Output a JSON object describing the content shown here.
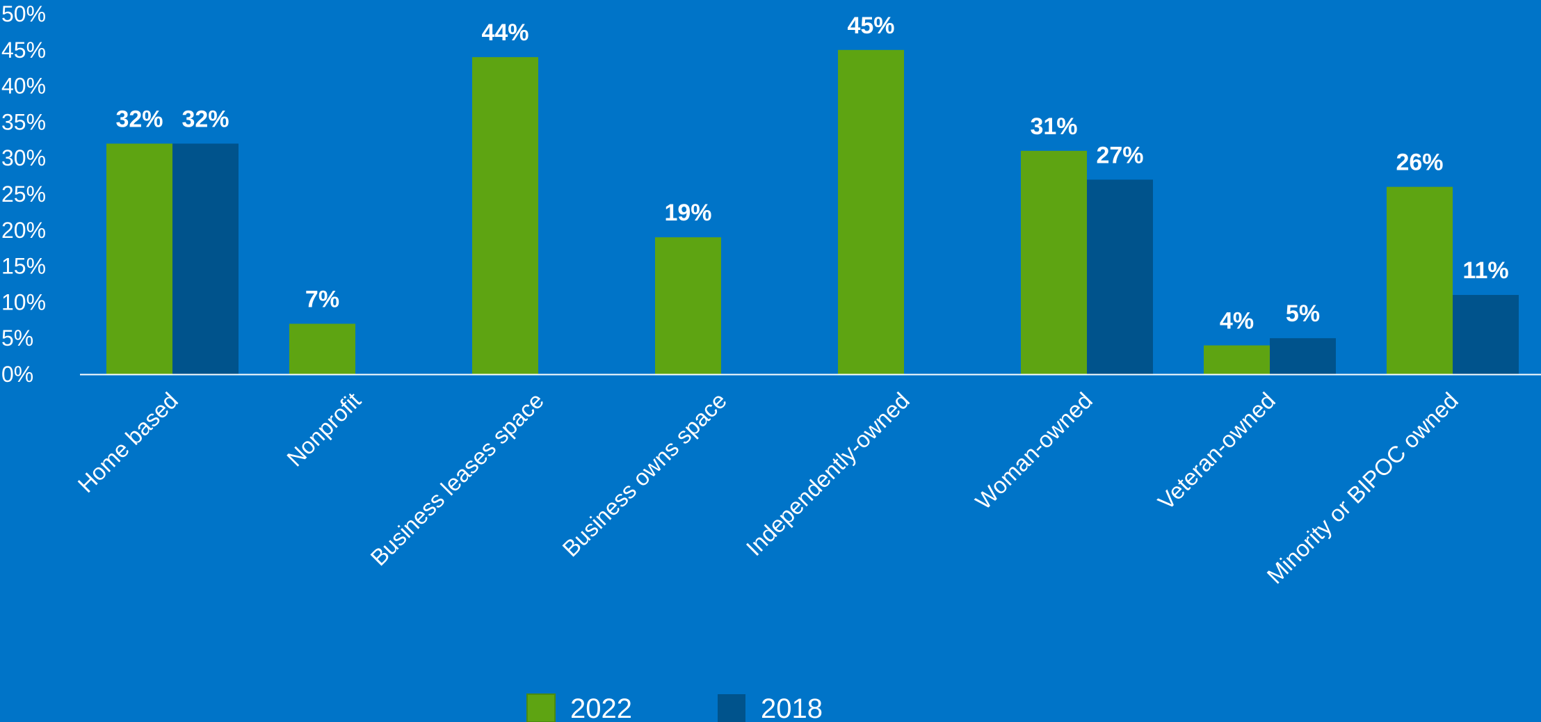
{
  "chart_data": {
    "type": "bar",
    "categories": [
      "Home based",
      "Nonprofit",
      "Business leases space",
      "Business owns space",
      "Independently-owned",
      "Woman-owned",
      "Veteran-owned",
      "Minority or BIPOC owned"
    ],
    "series": [
      {
        "name": "2022",
        "color": "#5EA412",
        "values": [
          32,
          7,
          44,
          19,
          45,
          31,
          4,
          26
        ],
        "labels": [
          "32%",
          "7%",
          "44%",
          "19%",
          "45%",
          "31%",
          "4%",
          "26%"
        ]
      },
      {
        "name": "2018",
        "color": "#00538C",
        "values": [
          32,
          null,
          null,
          null,
          null,
          27,
          5,
          11
        ],
        "labels": [
          "32%",
          null,
          null,
          null,
          null,
          "27%",
          "5%",
          "11%"
        ]
      }
    ],
    "yticks": [
      "0%",
      "5%",
      "10%",
      "15%",
      "20%",
      "25%",
      "30%",
      "35%",
      "40%",
      "45%",
      "50%"
    ],
    "ylim": [
      0,
      50
    ],
    "legend_position": "bottom",
    "grid": false,
    "colors": {
      "background": "#0074C8",
      "axis": "#FFFFFF",
      "text": "#FFFFFF"
    }
  }
}
